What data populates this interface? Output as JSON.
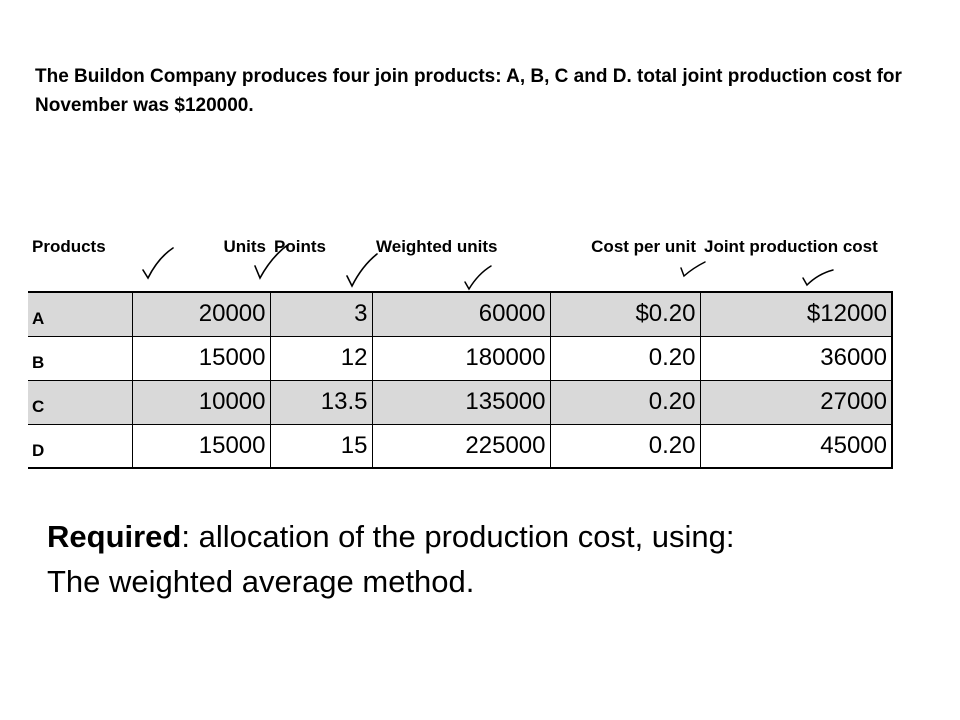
{
  "intro_text": "The Buildon Company produces four join products: A, B, C and D. total joint production cost for November was $120000.",
  "table": {
    "headers": {
      "products": "Products",
      "units": "Units",
      "points": "Points",
      "weighted": "Weighted units",
      "cost_per_unit": "Cost per unit",
      "joint": "Joint production cost"
    },
    "rows": [
      {
        "product": "A",
        "units": "20000",
        "points": "3",
        "weighted": "60000",
        "cost_per_unit": "$0.20",
        "joint": "$12000"
      },
      {
        "product": "B",
        "units": "15000",
        "points": "12",
        "weighted": "180000",
        "cost_per_unit": "0.20",
        "joint": "36000"
      },
      {
        "product": "C",
        "units": "10000",
        "points": "13.5",
        "weighted": "135000",
        "cost_per_unit": "0.20",
        "joint": "27000"
      },
      {
        "product": "D",
        "units": "15000",
        "points": "15",
        "weighted": "225000",
        "cost_per_unit": "0.20",
        "joint": "45000"
      }
    ]
  },
  "required": {
    "label": "Required",
    "text": ": allocation of the production cost, using:",
    "line2": "The weighted average method."
  }
}
